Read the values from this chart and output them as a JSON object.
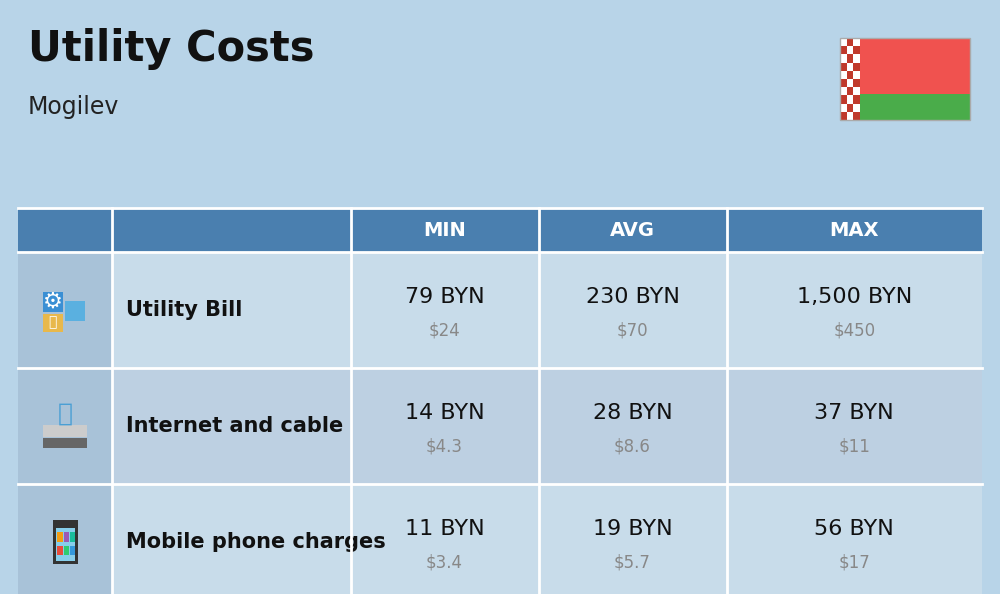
{
  "title": "Utility Costs",
  "subtitle": "Mogilev",
  "background_color": "#b8d4e8",
  "header_bg_color": "#4a7faf",
  "header_text_color": "#ffffff",
  "row_bg_color_1": "#c8dcea",
  "row_bg_color_2": "#bdd0e2",
  "icon_col_bg": "#a8c2d8",
  "separator_color": "#ffffff",
  "rows": [
    {
      "label": "Utility Bill",
      "min_byn": "79 BYN",
      "min_usd": "$24",
      "avg_byn": "230 BYN",
      "avg_usd": "$70",
      "max_byn": "1,500 BYN",
      "max_usd": "$450"
    },
    {
      "label": "Internet and cable",
      "min_byn": "14 BYN",
      "min_usd": "$4.3",
      "avg_byn": "28 BYN",
      "avg_usd": "$8.6",
      "max_byn": "37 BYN",
      "max_usd": "$11"
    },
    {
      "label": "Mobile phone charges",
      "min_byn": "11 BYN",
      "min_usd": "$3.4",
      "avg_byn": "19 BYN",
      "avg_usd": "$5.7",
      "max_byn": "56 BYN",
      "max_usd": "$17"
    }
  ],
  "flag_red": "#f0524f",
  "flag_green": "#4aac4a",
  "flag_white": "#ffffff",
  "flag_ornament_red": "#c0392b",
  "title_fontsize": 30,
  "subtitle_fontsize": 17,
  "header_fontsize": 14,
  "cell_fontsize_byn": 16,
  "cell_fontsize_usd": 12,
  "label_fontsize": 15
}
